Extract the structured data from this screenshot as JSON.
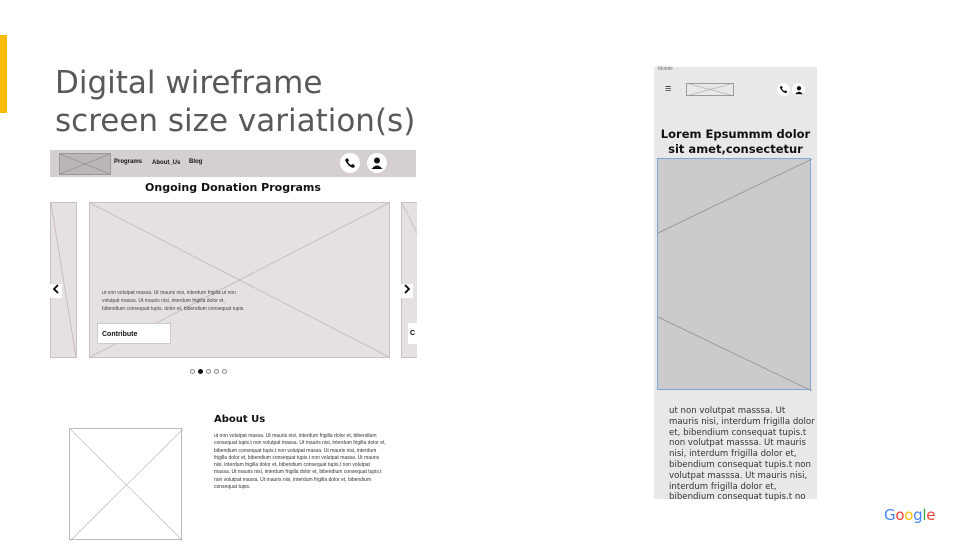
{
  "slide": {
    "title_line1": "Digital wireframe",
    "title_line2": "screen size variation(s)"
  },
  "desktop": {
    "nav": {
      "links": [
        "Programs",
        "About_Us",
        "Blog"
      ],
      "phone_icon": "phone-icon",
      "user_icon": "user-icon"
    },
    "heading": "Ongoing Donation Programs",
    "carousel": {
      "card_text": "ut non volutpat massa. Ut mauris nisi, interdum frigilla ut non volutpat massa. Ut mauris nisi, interdum frigilla dolor et, bibendium consequat tupis. dolor et, bibendium consequat tupis.",
      "contribute_label": "Contribute",
      "right_card_label": "C",
      "prev_icon": "‹",
      "next_icon": "›",
      "dots_total": 5,
      "active_dot": 2
    },
    "about": {
      "title": "About Us",
      "text": "ut non volutpat massa. Ut mauris nisi, interdum frigilla dolor et, bibendium consequat tupis.t non volutpat massa. Ut mauris nisi, interdum frigilla dolor et, bibendium consequat tupis.t non volutpat massa. Ut mauris nisi, interdum frigilla dolor et, bibendium consequat tupis.t non volutpat massa. Ut mauris nisi, interdum frigilla dolor et, bibendium consequat tupis.t non volutpat massa. Ut mauris nisi, interdum frigilla dolor et, bibendium consequat tupis.t non volutpat massa. Ut mauris nisi, interdum frigilla dolor et, bibendium consequat tupis."
    }
  },
  "mobile": {
    "label": "Mobile",
    "heading_line1": "Lorem Epsummm dolor",
    "heading_line2": "sit amet,consectetur",
    "text": "ut non volutpat masssa. Ut mauris nisi, interdum frigilla dolor et, bibendium consequat tupis.t non volutpat masssa. Ut mauris nisi, interdum frigilla dolor et, bibendium consequat tupis.t non volutpat masssa. Ut mauris nisi, interdum frigilla dolor et, bibendium consequat tupis.t no"
  },
  "brand": {
    "letters": [
      "G",
      "o",
      "o",
      "g",
      "l",
      "e"
    ],
    "colors": [
      "#4285f4",
      "#ea4335",
      "#fbbc04",
      "#4285f4",
      "#34a853",
      "#ea4335"
    ],
    "accent": "#fbbc04"
  }
}
